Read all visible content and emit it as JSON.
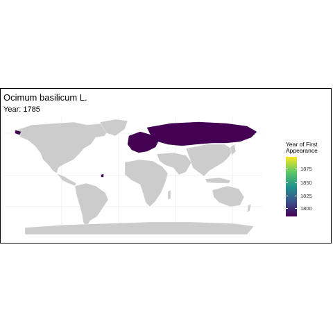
{
  "title": "Ocimum basilicum L.",
  "subtitle": "Year: 1785",
  "legend": {
    "title_line1": "Year of First",
    "title_line2": "Appearance",
    "ticks": [
      "1875",
      "1850",
      "1825",
      "1800"
    ],
    "color_low": "#440154",
    "color_high": "#fde725"
  },
  "colors": {
    "land": "#cccccc",
    "highlight": "#440154",
    "grid": "#ebebeb"
  },
  "highlighted_regions": [
    "Europe",
    "Russia",
    "Caribbean island"
  ]
}
